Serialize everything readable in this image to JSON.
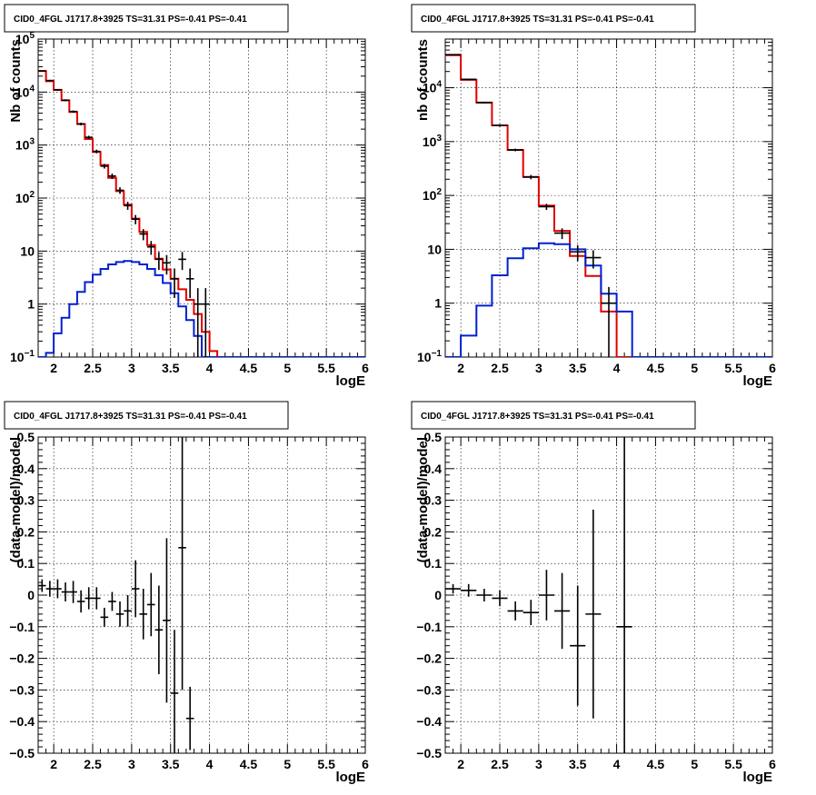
{
  "colors": {
    "data": "#000000",
    "total_model": "#e00000",
    "source_model": "#0020d0",
    "grid": "#000000",
    "frame": "#000000"
  },
  "chart_data": [
    {
      "type": "line",
      "title": "CID0_4FGL J1717.8+3925 TS=31.31 PS=-0.41 PS=-0.41",
      "xlabel": "logE",
      "ylabel": "Nb of counts",
      "log_y": true,
      "grid": true,
      "xlim": [
        1.8,
        6.0
      ],
      "ylim": [
        0.1,
        100000
      ],
      "x_ticks": [
        "2",
        "2.5",
        "3",
        "3.5",
        "4",
        "4.5",
        "5",
        "5.5",
        "6"
      ],
      "y_ticks": [
        "10^-1",
        "1",
        "10",
        "10^2",
        "10^3",
        "10^4",
        "10^5"
      ],
      "bin_edges": [
        1.8,
        1.9,
        2.0,
        2.1,
        2.2,
        2.3,
        2.4,
        2.5,
        2.6,
        2.7,
        2.8,
        2.9,
        3.0,
        3.1,
        3.2,
        3.3,
        3.4,
        3.5,
        3.6,
        3.7,
        3.8,
        3.9,
        4.0,
        4.1,
        4.2,
        4.3,
        4.4,
        4.5,
        4.6,
        4.7,
        4.8,
        4.9,
        5.0,
        5.1,
        5.2,
        5.3,
        5.4,
        5.5,
        5.6,
        5.7,
        5.8,
        5.9,
        6.0
      ],
      "series": [
        {
          "kind": "total_model",
          "values": [
            25000,
            16000,
            11000,
            7000,
            4200,
            2500,
            1300,
            740,
            420,
            240,
            135,
            75,
            41,
            23,
            13,
            7.2,
            4.5,
            3.0,
            1.9,
            1.2,
            0.65,
            0.3,
            0.13,
            0.1,
            0.1,
            0.1,
            0.1,
            0.1,
            0.1,
            0.1,
            0.1,
            0.1,
            0.1,
            0.1,
            0.1,
            0.1,
            0.1,
            0.1,
            0.1,
            0.1,
            0.1,
            0.1
          ]
        },
        {
          "kind": "source_model",
          "values": [
            0.05,
            0.12,
            0.28,
            0.55,
            1.0,
            1.7,
            2.6,
            3.6,
            4.6,
            5.6,
            6.2,
            6.5,
            6.2,
            5.6,
            4.6,
            3.5,
            2.5,
            1.6,
            0.9,
            0.5,
            0.25,
            0.1,
            0.1,
            0.1,
            0.1,
            0.1,
            0.1,
            0.1,
            0.1,
            0.1,
            0.1,
            0.1,
            0.1,
            0.1,
            0.1,
            0.1,
            0.1,
            0.1,
            0.1,
            0.1,
            0.1,
            0.1
          ]
        },
        {
          "kind": "data",
          "points": [
            {
              "x": 1.85,
              "y": 25000,
              "lo": 24500,
              "hi": 25500
            },
            {
              "x": 1.95,
              "y": 16500,
              "lo": 16000,
              "hi": 17000
            },
            {
              "x": 2.05,
              "y": 11000,
              "lo": 10600,
              "hi": 11400
            },
            {
              "x": 2.15,
              "y": 7000,
              "lo": 6700,
              "hi": 7300
            },
            {
              "x": 2.25,
              "y": 4300,
              "lo": 4100,
              "hi": 4500
            },
            {
              "x": 2.35,
              "y": 2500,
              "lo": 2350,
              "hi": 2650
            },
            {
              "x": 2.45,
              "y": 1400,
              "lo": 1300,
              "hi": 1500
            },
            {
              "x": 2.55,
              "y": 760,
              "lo": 700,
              "hi": 820
            },
            {
              "x": 2.65,
              "y": 400,
              "lo": 360,
              "hi": 440
            },
            {
              "x": 2.75,
              "y": 260,
              "lo": 230,
              "hi": 290
            },
            {
              "x": 2.85,
              "y": 140,
              "lo": 120,
              "hi": 160
            },
            {
              "x": 2.95,
              "y": 72,
              "lo": 60,
              "hi": 85
            },
            {
              "x": 3.05,
              "y": 40,
              "lo": 32,
              "hi": 48
            },
            {
              "x": 3.15,
              "y": 21,
              "lo": 16,
              "hi": 26
            },
            {
              "x": 3.25,
              "y": 12,
              "lo": 8.5,
              "hi": 15.5
            },
            {
              "x": 3.35,
              "y": 7,
              "lo": 4.4,
              "hi": 9.6
            },
            {
              "x": 3.45,
              "y": 6,
              "lo": 3.6,
              "hi": 8.4
            },
            {
              "x": 3.55,
              "y": 3,
              "lo": 1.3,
              "hi": 4.7
            },
            {
              "x": 3.65,
              "y": 7,
              "lo": 4.4,
              "hi": 9.6
            },
            {
              "x": 3.75,
              "y": 3,
              "lo": 1.3,
              "hi": 4.7
            },
            {
              "x": 3.85,
              "y": 1,
              "lo": 0.1,
              "hi": 2.0
            },
            {
              "x": 3.95,
              "y": 1,
              "lo": 0.1,
              "hi": 2.0
            }
          ]
        }
      ]
    },
    {
      "type": "line",
      "title": "CID0_4FGL J1717.8+3925 TS=31.31 PS=-0.41 PS=-0.41",
      "xlabel": "logE",
      "ylabel": "nb of counts",
      "log_y": true,
      "grid": true,
      "xlim": [
        1.8,
        6.0
      ],
      "ylim": [
        0.1,
        80000
      ],
      "x_ticks": [
        "2",
        "2.5",
        "3",
        "3.5",
        "4",
        "4.5",
        "5",
        "5.5",
        "6"
      ],
      "y_ticks": [
        "10^-1",
        "1",
        "10",
        "10^2",
        "10^3",
        "10^4"
      ],
      "bin_edges": [
        1.8,
        2.0,
        2.2,
        2.4,
        2.6,
        2.8,
        3.0,
        3.2,
        3.4,
        3.6,
        3.8,
        4.0,
        4.2,
        4.4,
        4.6,
        4.8,
        5.0,
        5.2,
        5.4,
        5.6,
        5.8,
        6.0
      ],
      "series": [
        {
          "kind": "total_model",
          "values": [
            40000,
            14000,
            5300,
            2000,
            700,
            220,
            65,
            22,
            7.5,
            3.2,
            0.7,
            0.1,
            0.1,
            0.1,
            0.1,
            0.1,
            0.1,
            0.1,
            0.1,
            0.1,
            0.1
          ]
        },
        {
          "kind": "source_model",
          "values": [
            0.05,
            0.25,
            0.9,
            3.3,
            6.8,
            10.5,
            13,
            12.5,
            10,
            5.0,
            1.5,
            0.7,
            0.1,
            0.1,
            0.1,
            0.1,
            0.1,
            0.1,
            0.1,
            0.1,
            0.1
          ]
        },
        {
          "kind": "data",
          "points": [
            {
              "x": 1.9,
              "y": 41000,
              "lo": 40500,
              "hi": 41500
            },
            {
              "x": 2.1,
              "y": 14300,
              "lo": 14000,
              "hi": 14600
            },
            {
              "x": 2.3,
              "y": 5300,
              "lo": 5100,
              "hi": 5500
            },
            {
              "x": 2.5,
              "y": 2000,
              "lo": 1900,
              "hi": 2100
            },
            {
              "x": 2.7,
              "y": 700,
              "lo": 660,
              "hi": 740
            },
            {
              "x": 2.9,
              "y": 220,
              "lo": 200,
              "hi": 240
            },
            {
              "x": 3.1,
              "y": 62,
              "lo": 54,
              "hi": 70
            },
            {
              "x": 3.3,
              "y": 20,
              "lo": 15.5,
              "hi": 24.5
            },
            {
              "x": 3.5,
              "y": 9,
              "lo": 6,
              "hi": 12
            },
            {
              "x": 3.7,
              "y": 7,
              "lo": 4.4,
              "hi": 9.6
            },
            {
              "x": 3.9,
              "y": 1,
              "lo": 0.1,
              "hi": 2.0
            }
          ]
        }
      ]
    },
    {
      "type": "scatter",
      "title": "CID0_4FGL J1717.8+3925 TS=31.31 PS=-0.41 PS=-0.41",
      "xlabel": "logE",
      "ylabel": "(data-model)/model",
      "grid": true,
      "xlim": [
        1.8,
        6.0
      ],
      "ylim": [
        -0.5,
        0.5
      ],
      "x_ticks": [
        "2",
        "2.5",
        "3",
        "3.5",
        "4",
        "4.5",
        "5",
        "5.5",
        "6"
      ],
      "y_ticks": [
        "−0.5",
        "−0.4",
        "−0.3",
        "−0.2",
        "−0.1",
        "0",
        "0.1",
        "0.2",
        "0.3",
        "0.4",
        "0.5"
      ],
      "points": [
        {
          "x": 1.85,
          "y": 0.03,
          "err": 0.02
        },
        {
          "x": 1.95,
          "y": 0.02,
          "err": 0.025
        },
        {
          "x": 2.05,
          "y": 0.02,
          "err": 0.03
        },
        {
          "x": 2.15,
          "y": 0.01,
          "err": 0.03
        },
        {
          "x": 2.25,
          "y": 0.01,
          "err": 0.035
        },
        {
          "x": 2.35,
          "y": -0.02,
          "err": 0.035
        },
        {
          "x": 2.45,
          "y": -0.01,
          "err": 0.035
        },
        {
          "x": 2.55,
          "y": -0.01,
          "err": 0.035
        },
        {
          "x": 2.65,
          "y": -0.07,
          "err": 0.03
        },
        {
          "x": 2.75,
          "y": -0.02,
          "err": 0.03
        },
        {
          "x": 2.85,
          "y": -0.06,
          "err": 0.04
        },
        {
          "x": 2.95,
          "y": -0.05,
          "err": 0.05
        },
        {
          "x": 3.05,
          "y": 0.02,
          "err": 0.09
        },
        {
          "x": 3.15,
          "y": -0.06,
          "err": 0.08
        },
        {
          "x": 3.25,
          "y": -0.03,
          "err": 0.1
        },
        {
          "x": 3.35,
          "y": -0.11,
          "err": 0.14
        },
        {
          "x": 3.45,
          "y": -0.08,
          "err": 0.26
        },
        {
          "x": 3.55,
          "y": -0.31,
          "err": 0.2
        },
        {
          "x": 3.65,
          "y": 0.15,
          "err": 0.45
        },
        {
          "x": 3.75,
          "y": -0.39,
          "err": 0.1
        }
      ]
    },
    {
      "type": "scatter",
      "title": "CID0_4FGL J1717.8+3925 TS=31.31 PS=-0.41 PS=-0.41",
      "xlabel": "logE",
      "ylabel": "(data-model)/model",
      "grid": true,
      "xlim": [
        1.8,
        6.0
      ],
      "ylim": [
        -0.5,
        0.5
      ],
      "x_ticks": [
        "2",
        "2.5",
        "3",
        "3.5",
        "4",
        "4.5",
        "5",
        "5.5",
        "6"
      ],
      "y_ticks": [
        "−0.5",
        "−0.4",
        "−0.3",
        "−0.2",
        "−0.1",
        "0",
        "0.1",
        "0.2",
        "0.3",
        "0.4",
        "0.5"
      ],
      "points": [
        {
          "x": 1.9,
          "y": 0.02,
          "err": 0.015
        },
        {
          "x": 2.1,
          "y": 0.015,
          "err": 0.02
        },
        {
          "x": 2.3,
          "y": 0.0,
          "err": 0.02
        },
        {
          "x": 2.5,
          "y": -0.01,
          "err": 0.025
        },
        {
          "x": 2.7,
          "y": -0.05,
          "err": 0.03
        },
        {
          "x": 2.9,
          "y": -0.055,
          "err": 0.04
        },
        {
          "x": 3.1,
          "y": 0.0,
          "err": 0.08
        },
        {
          "x": 3.3,
          "y": -0.05,
          "err": 0.12
        },
        {
          "x": 3.5,
          "y": -0.16,
          "err": 0.19
        },
        {
          "x": 3.7,
          "y": -0.06,
          "err": 0.33
        },
        {
          "x": 4.1,
          "y": -0.1,
          "err": 0.6
        }
      ]
    }
  ]
}
